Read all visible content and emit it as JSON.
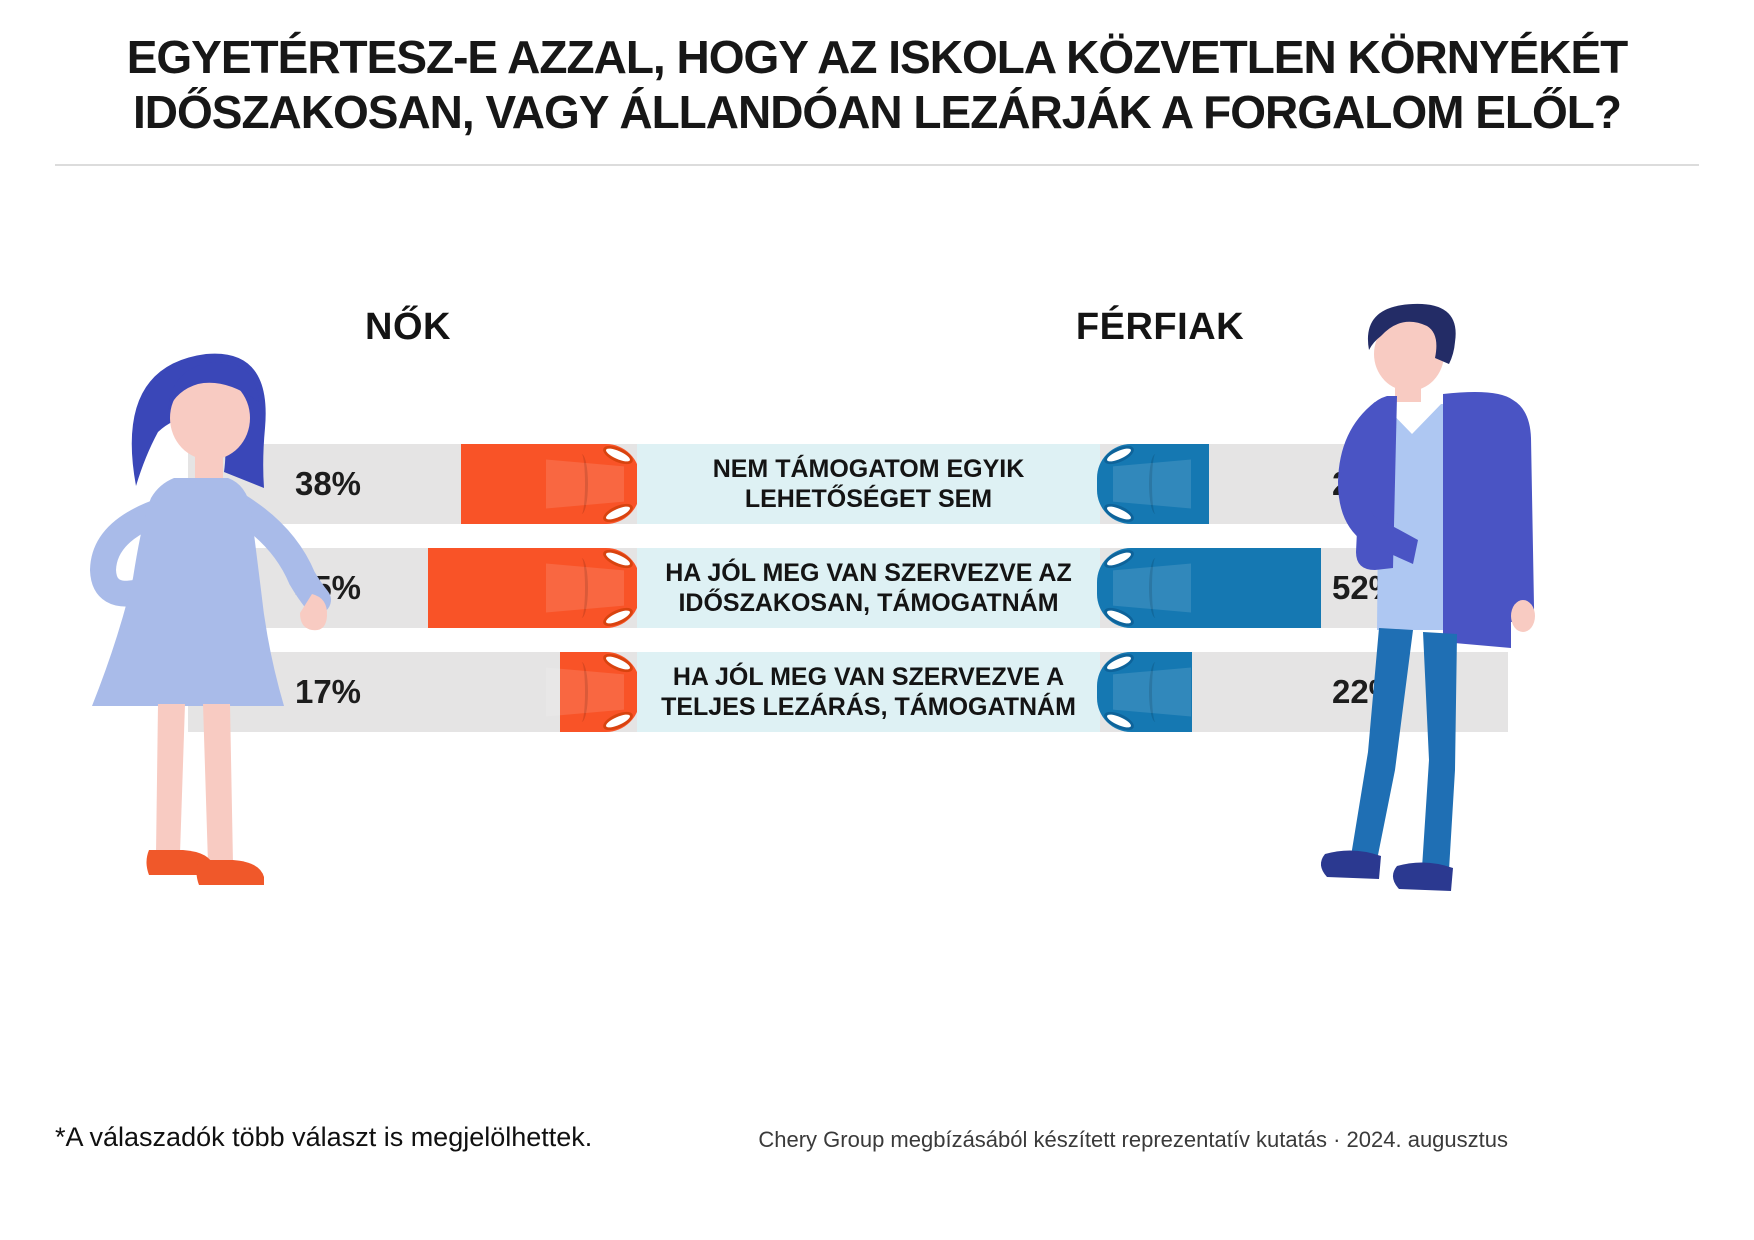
{
  "title": {
    "line1": "EGYETÉRTESZ-E AZZAL, HOGY AZ ISKOLA KÖZVETLEN KÖRNYÉKÉT",
    "line2": "IDŐSZAKOSAN, VAGY ÁLLANDÓAN LEZÁRJÁK A FORGALOM ELŐL?"
  },
  "groups": {
    "women": "NŐK",
    "men": "FÉRFIAK"
  },
  "rows": [
    {
      "label": "NEM TÁMOGATOM EGYIK LEHETŐSÉGET SEM",
      "women_pct_label": "38%",
      "men_pct_label": "26%",
      "women_value": 38,
      "men_value": 26
    },
    {
      "label": "HA JÓL MEG VAN SZERVEZVE AZ IDŐSZAKOSAN, TÁMOGATNÁM",
      "women_pct_label": "45%",
      "men_pct_label": "52%",
      "women_value": 45,
      "men_value": 52
    },
    {
      "label": "HA JÓL MEG VAN SZERVEZVE A TELJES LEZÁRÁS, TÁMOGATNÁM",
      "women_pct_label": "17%",
      "men_pct_label": "22%",
      "women_value": 17,
      "men_value": 22
    }
  ],
  "footer": {
    "note": "*A válaszadók több választ is megjelölhettek.",
    "source": "Chery Group megbízásából készített reprezentatív kutatás · 2024. augusztus"
  },
  "colors": {
    "women_bar": "#F95327",
    "men_bar": "#1578B2",
    "track": "#E5E4E4",
    "label_bg": "#DEF1F4",
    "text": "#1B1B1B"
  },
  "chart_data": {
    "type": "bar",
    "orientation": "horizontal-mirrored",
    "title": "EGYETÉRTESZ-E AZZAL, HOGY AZ ISKOLA KÖZVETLEN KÖRNYÉKÉT IDŐSZAKOSAN, VAGY ÁLLANDÓAN LEZÁRJÁK A FORGALOM ELŐL?",
    "categories": [
      "NEM TÁMOGATOM EGYIK LEHETŐSÉGET SEM",
      "HA JÓL MEG VAN SZERVEZVE AZ IDŐSZAKOSAN, TÁMOGATNÁM",
      "HA JÓL MEG VAN SZERVEZVE A TELJES LEZÁRÁS, TÁMOGATNÁM"
    ],
    "series": [
      {
        "name": "NŐK",
        "values": [
          38,
          45,
          17
        ],
        "color": "#F95327"
      },
      {
        "name": "FÉRFIAK",
        "values": [
          26,
          52,
          22
        ],
        "color": "#1578B2"
      }
    ],
    "unit": "%",
    "legend_position": "top",
    "grid": false,
    "note": "*A válaszadók több választ is megjelölhettek.",
    "source": "Chery Group megbízásából készített reprezentatív kutatás · 2024. augusztus"
  }
}
